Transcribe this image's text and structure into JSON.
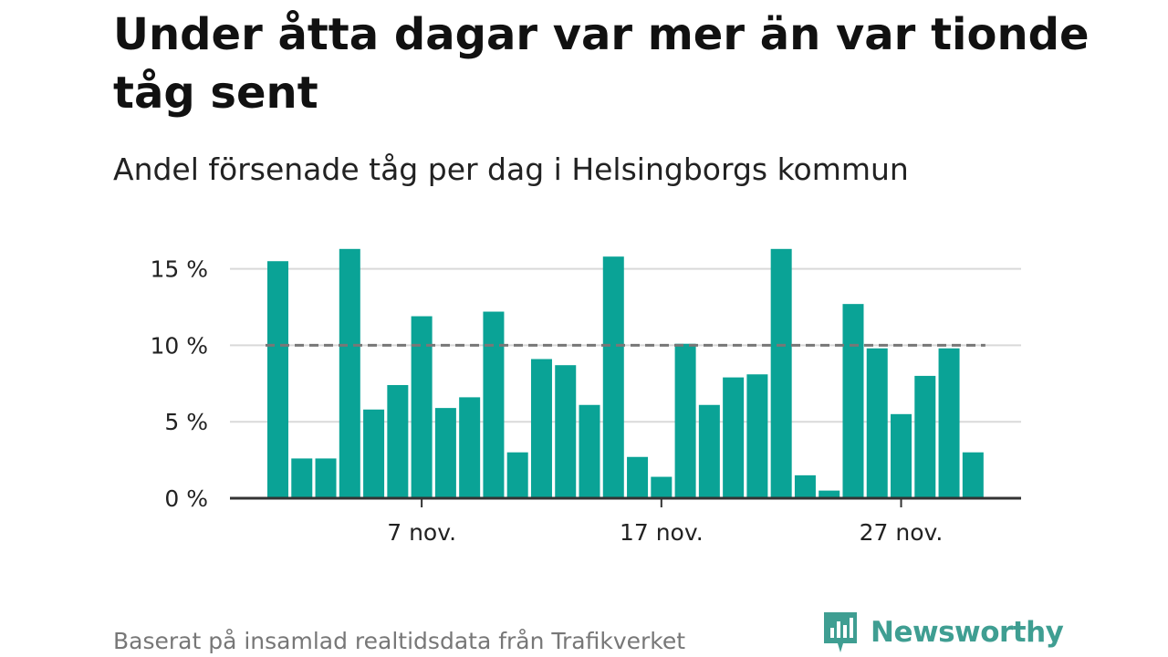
{
  "title": "Under åtta dagar var mer än var tionde tåg sent",
  "subtitle": "Andel försenade tåg per dag i Helsingborgs kommun",
  "footer": "Baserat på insamlad realtidsdata från Trafikverket",
  "brand": {
    "name": "Newsworthy",
    "icon": "newsworthy-logo-icon"
  },
  "colors": {
    "bar": "#0aa396",
    "grid": "#d9d9d9",
    "axis": "#333333",
    "reference": "#777777",
    "brand": "#3f9e92"
  },
  "chart_data": {
    "type": "bar",
    "x": [
      "1 nov.",
      "2 nov.",
      "3 nov.",
      "4 nov.",
      "5 nov.",
      "6 nov.",
      "7 nov.",
      "8 nov.",
      "9 nov.",
      "10 nov.",
      "11 nov.",
      "12 nov.",
      "13 nov.",
      "14 nov.",
      "15 nov.",
      "16 nov.",
      "17 nov.",
      "18 nov.",
      "19 nov.",
      "20 nov.",
      "21 nov.",
      "22 nov.",
      "23 nov.",
      "24 nov.",
      "25 nov.",
      "26 nov.",
      "27 nov.",
      "28 nov.",
      "29 nov.",
      "30 nov."
    ],
    "values": [
      15.5,
      2.6,
      2.6,
      16.3,
      5.8,
      7.4,
      11.9,
      5.9,
      6.6,
      12.2,
      3.0,
      9.1,
      8.7,
      6.1,
      15.8,
      2.7,
      1.4,
      10.1,
      6.1,
      7.9,
      8.1,
      16.3,
      1.5,
      0.5,
      12.7,
      9.8,
      5.5,
      8.0,
      9.8,
      3.0
    ],
    "unit": "%",
    "ylim": [
      0,
      16.3
    ],
    "yticks": [
      0,
      5,
      10,
      15
    ],
    "ytick_labels": [
      "0 %",
      "5 %",
      "10 %",
      "15 %"
    ],
    "xtick_indices": [
      6,
      16,
      26
    ],
    "xtick_labels": [
      "7 nov.",
      "17 nov.",
      "27 nov."
    ],
    "reference_line": 10,
    "grid": true,
    "xlabel": "",
    "ylabel": ""
  }
}
